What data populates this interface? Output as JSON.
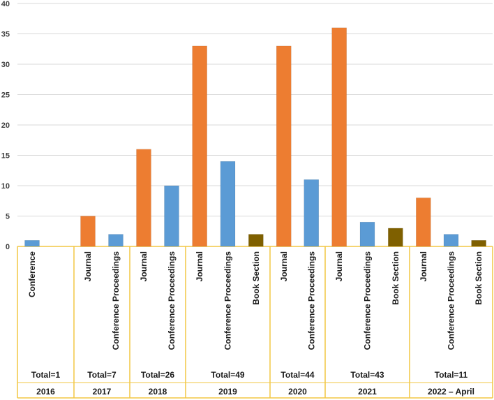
{
  "chart_data": {
    "type": "bar",
    "title": "",
    "xlabel": "",
    "ylabel": "",
    "ylim": [
      0,
      40
    ],
    "yticks": [
      0,
      5,
      10,
      15,
      20,
      25,
      30,
      35,
      40
    ],
    "grid": true,
    "colors": {
      "Journal": "#ED7D31",
      "Conference": "#5B9BD5",
      "Conference Proceedings": "#5B9BD5",
      "Book Section": "#7F6000",
      "gridline": "#D9D9D9",
      "table_border": "#F2C744"
    },
    "groups": [
      {
        "year": "2016",
        "total": "Total=1",
        "bars": [
          {
            "category": "Conference",
            "value": 1
          }
        ]
      },
      {
        "year": "2017",
        "total": "Total=7",
        "bars": [
          {
            "category": "Journal",
            "value": 5
          },
          {
            "category": "Conference Proceedings",
            "value": 2
          }
        ]
      },
      {
        "year": "2018",
        "total": "Total=26",
        "bars": [
          {
            "category": "Journal",
            "value": 16
          },
          {
            "category": "Conference Proceedings",
            "value": 10
          }
        ]
      },
      {
        "year": "2019",
        "total": "Total=49",
        "bars": [
          {
            "category": "Journal",
            "value": 33
          },
          {
            "category": "Conference Proceedings",
            "value": 14
          },
          {
            "category": "Book Section",
            "value": 2
          }
        ]
      },
      {
        "year": "2020",
        "total": "Total=44",
        "bars": [
          {
            "category": "Journal",
            "value": 33
          },
          {
            "category": "Conference Proceedings",
            "value": 11
          }
        ]
      },
      {
        "year": "2021",
        "total": "Total=43",
        "bars": [
          {
            "category": "Journal",
            "value": 36
          },
          {
            "category": "Conference Proceedings",
            "value": 4
          },
          {
            "category": "Book Section",
            "value": 3
          }
        ]
      },
      {
        "year": "2022 – April",
        "total": "Total=11",
        "bars": [
          {
            "category": "Journal",
            "value": 8
          },
          {
            "category": "Conference Proceedings",
            "value": 2
          },
          {
            "category": "Book Section",
            "value": 1
          }
        ]
      }
    ]
  }
}
